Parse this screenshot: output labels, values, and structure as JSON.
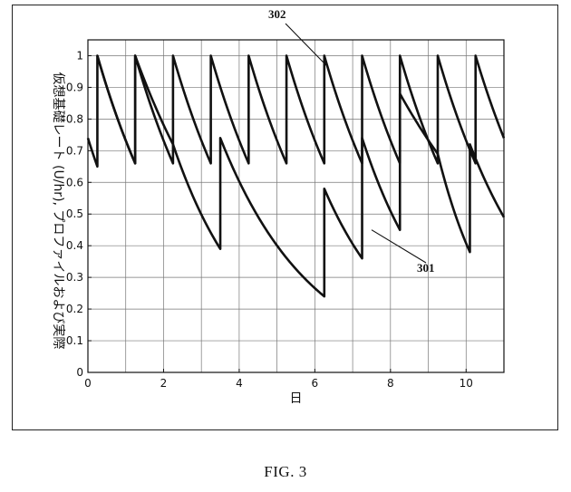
{
  "figure": {
    "caption": "FIG. 3"
  },
  "chart_data": {
    "type": "line",
    "title": "",
    "xlabel": "日",
    "ylabel": "仮想基礎レート (U/hr), プロファイルおよび実際",
    "xlim": [
      0,
      11
    ],
    "ylim": [
      0,
      1.05
    ],
    "x_ticks": [
      "0",
      "2",
      "4",
      "6",
      "8",
      "10"
    ],
    "y_ticks": [
      "0",
      "0.1",
      "0.2",
      "0.3",
      "0.4",
      "0.5",
      "0.6",
      "0.7",
      "0.8",
      "0.9",
      "1"
    ],
    "grid": true,
    "annotations": [
      {
        "label": "302",
        "target_series": "302"
      },
      {
        "label": "301",
        "target_series": "301"
      }
    ],
    "series": [
      {
        "name": "302",
        "x": [
          0.25,
          1.25,
          1.25,
          2.25,
          2.25,
          3.25,
          3.25,
          4.25,
          4.25,
          5.25,
          5.25,
          6.25,
          6.25,
          7.25,
          7.25,
          8.25,
          8.25,
          9.25,
          9.25,
          10.25,
          10.25,
          11.0
        ],
        "y": [
          1.0,
          0.66,
          1.0,
          0.66,
          1.0,
          0.66,
          1.0,
          0.66,
          1.0,
          0.66,
          1.0,
          0.66,
          1.0,
          0.66,
          1.0,
          0.66,
          1.0,
          0.66,
          1.0,
          0.66,
          1.0,
          0.74
        ]
      },
      {
        "name": "301",
        "x": [
          0.0,
          0.25,
          0.25,
          1.25,
          1.25,
          2.25,
          3.5,
          3.5,
          6.25,
          6.25,
          7.25,
          7.25,
          8.25,
          8.25,
          9.25,
          10.1,
          10.1,
          11.0
        ],
        "y": [
          0.74,
          0.65,
          1.0,
          0.66,
          1.0,
          0.72,
          0.39,
          0.74,
          0.24,
          0.58,
          0.36,
          0.74,
          0.45,
          0.88,
          0.69,
          0.38,
          0.72,
          0.49
        ]
      }
    ]
  }
}
